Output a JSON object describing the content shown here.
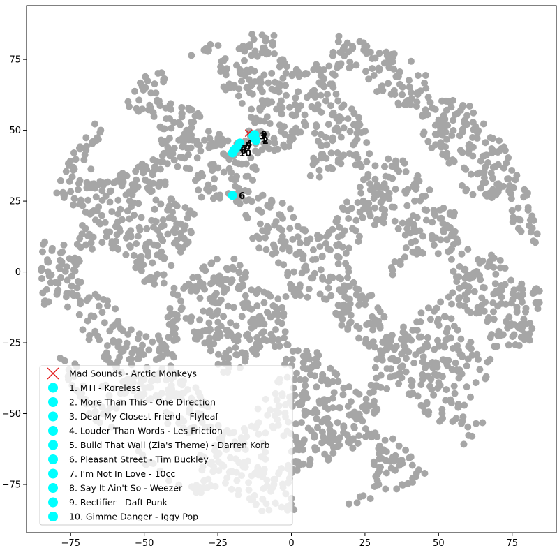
{
  "chart_data": {
    "type": "scatter",
    "title": "",
    "xlabel": "",
    "ylabel": "",
    "xlim": [
      -90,
      90
    ],
    "ylim": [
      -92,
      94
    ],
    "xticks": [
      -75,
      -50,
      -25,
      0,
      25,
      50,
      75
    ],
    "yticks": [
      -75,
      -50,
      -25,
      0,
      25,
      50,
      75
    ],
    "grid": false,
    "legend_placement": "lower-left",
    "background_series": {
      "description": "dense cloud of grey points forming a roughly circular t-SNE embedding",
      "color": "#808080"
    },
    "query_point": {
      "name": "Mad Sounds - Arctic Monkeys",
      "x": -14.5,
      "y": 49,
      "marker": "x",
      "color": "#e31a1c"
    },
    "neighbors": {
      "color": "#00ffff",
      "points": [
        {
          "rank": "1",
          "name": "1. MTI - Koreless",
          "x": -12.5,
          "y": 47
        },
        {
          "rank": "2",
          "name": "2. More Than This - One Direction",
          "x": -12.0,
          "y": 46.5
        },
        {
          "rank": "3",
          "name": "3. Dear My Closest Friend - Flyleaf",
          "x": -13.0,
          "y": 48
        },
        {
          "rank": "4",
          "name": "4. Louder Than Words - Les Friction",
          "x": -17.5,
          "y": 45.5
        },
        {
          "rank": "5",
          "name": "5. Build That Wall (Zia's Theme) - Darren Korb",
          "x": -18.0,
          "y": 44.5
        },
        {
          "rank": "6",
          "name": "6. Pleasant Street - Tim Buckley",
          "x": -20.0,
          "y": 27
        },
        {
          "rank": "7",
          "name": "7. I'm Not In Love - 10cc",
          "x": -19.0,
          "y": 43.5
        },
        {
          "rank": "8",
          "name": "8. Say It Ain't So - Weezer",
          "x": -19.5,
          "y": 43
        },
        {
          "rank": "9",
          "name": "9. Rectifier - Daft Punk",
          "x": -12.5,
          "y": 48.5
        },
        {
          "rank": "10",
          "name": "10. Gimme Danger - Iggy Pop",
          "x": -20.0,
          "y": 42
        }
      ]
    }
  }
}
